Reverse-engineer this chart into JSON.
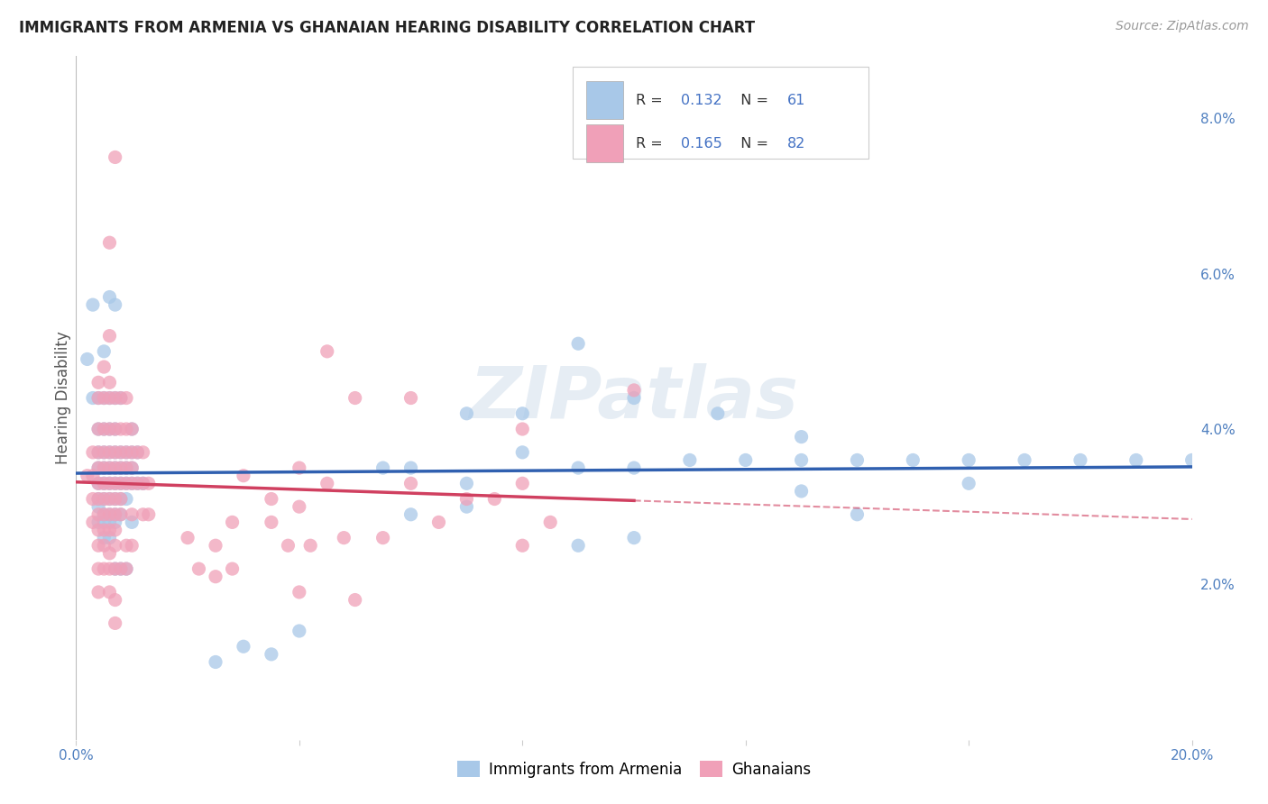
{
  "title": "IMMIGRANTS FROM ARMENIA VS GHANAIAN HEARING DISABILITY CORRELATION CHART",
  "source": "Source: ZipAtlas.com",
  "ylabel": "Hearing Disability",
  "xlim": [
    0.0,
    0.2
  ],
  "ylim": [
    0.0,
    0.088
  ],
  "series1_color": "#a8c8e8",
  "series2_color": "#f0a0b8",
  "series1_line_color": "#3060b0",
  "series2_line_color": "#d04060",
  "watermark": "ZIPatlas",
  "background_color": "#ffffff",
  "grid_color": "#d8d8d8",
  "blue_scatter": [
    [
      0.002,
      0.049
    ],
    [
      0.003,
      0.044
    ],
    [
      0.004,
      0.044
    ],
    [
      0.004,
      0.04
    ],
    [
      0.004,
      0.037
    ],
    [
      0.004,
      0.035
    ],
    [
      0.004,
      0.033
    ],
    [
      0.004,
      0.031
    ],
    [
      0.004,
      0.03
    ],
    [
      0.004,
      0.028
    ],
    [
      0.005,
      0.05
    ],
    [
      0.005,
      0.044
    ],
    [
      0.005,
      0.04
    ],
    [
      0.005,
      0.037
    ],
    [
      0.005,
      0.035
    ],
    [
      0.005,
      0.033
    ],
    [
      0.005,
      0.031
    ],
    [
      0.005,
      0.029
    ],
    [
      0.005,
      0.028
    ],
    [
      0.005,
      0.026
    ],
    [
      0.006,
      0.057
    ],
    [
      0.006,
      0.044
    ],
    [
      0.006,
      0.04
    ],
    [
      0.006,
      0.037
    ],
    [
      0.006,
      0.035
    ],
    [
      0.006,
      0.033
    ],
    [
      0.006,
      0.031
    ],
    [
      0.006,
      0.029
    ],
    [
      0.006,
      0.028
    ],
    [
      0.006,
      0.026
    ],
    [
      0.007,
      0.044
    ],
    [
      0.007,
      0.04
    ],
    [
      0.007,
      0.037
    ],
    [
      0.007,
      0.035
    ],
    [
      0.007,
      0.033
    ],
    [
      0.007,
      0.031
    ],
    [
      0.007,
      0.029
    ],
    [
      0.007,
      0.028
    ],
    [
      0.007,
      0.022
    ],
    [
      0.008,
      0.044
    ],
    [
      0.008,
      0.037
    ],
    [
      0.008,
      0.035
    ],
    [
      0.008,
      0.033
    ],
    [
      0.008,
      0.031
    ],
    [
      0.008,
      0.029
    ],
    [
      0.008,
      0.022
    ],
    [
      0.009,
      0.037
    ],
    [
      0.009,
      0.035
    ],
    [
      0.009,
      0.033
    ],
    [
      0.009,
      0.031
    ],
    [
      0.009,
      0.022
    ],
    [
      0.01,
      0.04
    ],
    [
      0.01,
      0.037
    ],
    [
      0.01,
      0.035
    ],
    [
      0.01,
      0.033
    ],
    [
      0.01,
      0.028
    ],
    [
      0.011,
      0.037
    ],
    [
      0.011,
      0.033
    ],
    [
      0.012,
      0.033
    ],
    [
      0.003,
      0.056
    ],
    [
      0.007,
      0.056
    ],
    [
      0.09,
      0.051
    ],
    [
      0.1,
      0.044
    ],
    [
      0.115,
      0.042
    ],
    [
      0.08,
      0.042
    ],
    [
      0.13,
      0.039
    ],
    [
      0.07,
      0.042
    ],
    [
      0.055,
      0.035
    ],
    [
      0.06,
      0.035
    ],
    [
      0.07,
      0.033
    ],
    [
      0.08,
      0.037
    ],
    [
      0.09,
      0.035
    ],
    [
      0.1,
      0.035
    ],
    [
      0.11,
      0.036
    ],
    [
      0.12,
      0.036
    ],
    [
      0.13,
      0.036
    ],
    [
      0.14,
      0.036
    ],
    [
      0.15,
      0.036
    ],
    [
      0.16,
      0.036
    ],
    [
      0.17,
      0.036
    ],
    [
      0.18,
      0.036
    ],
    [
      0.19,
      0.036
    ],
    [
      0.2,
      0.036
    ],
    [
      0.14,
      0.029
    ],
    [
      0.16,
      0.033
    ],
    [
      0.09,
      0.025
    ],
    [
      0.1,
      0.026
    ],
    [
      0.07,
      0.03
    ],
    [
      0.06,
      0.029
    ],
    [
      0.13,
      0.032
    ],
    [
      0.03,
      0.012
    ],
    [
      0.035,
      0.011
    ],
    [
      0.04,
      0.014
    ],
    [
      0.025,
      0.01
    ]
  ],
  "pink_scatter": [
    [
      0.002,
      0.034
    ],
    [
      0.003,
      0.037
    ],
    [
      0.003,
      0.034
    ],
    [
      0.003,
      0.031
    ],
    [
      0.003,
      0.028
    ],
    [
      0.004,
      0.046
    ],
    [
      0.004,
      0.044
    ],
    [
      0.004,
      0.04
    ],
    [
      0.004,
      0.037
    ],
    [
      0.004,
      0.035
    ],
    [
      0.004,
      0.033
    ],
    [
      0.004,
      0.031
    ],
    [
      0.004,
      0.029
    ],
    [
      0.004,
      0.027
    ],
    [
      0.004,
      0.025
    ],
    [
      0.004,
      0.022
    ],
    [
      0.004,
      0.019
    ],
    [
      0.005,
      0.048
    ],
    [
      0.005,
      0.044
    ],
    [
      0.005,
      0.04
    ],
    [
      0.005,
      0.037
    ],
    [
      0.005,
      0.035
    ],
    [
      0.005,
      0.033
    ],
    [
      0.005,
      0.031
    ],
    [
      0.005,
      0.029
    ],
    [
      0.005,
      0.027
    ],
    [
      0.005,
      0.025
    ],
    [
      0.005,
      0.022
    ],
    [
      0.006,
      0.064
    ],
    [
      0.006,
      0.052
    ],
    [
      0.006,
      0.046
    ],
    [
      0.006,
      0.044
    ],
    [
      0.006,
      0.04
    ],
    [
      0.006,
      0.037
    ],
    [
      0.006,
      0.035
    ],
    [
      0.006,
      0.033
    ],
    [
      0.006,
      0.031
    ],
    [
      0.006,
      0.029
    ],
    [
      0.006,
      0.027
    ],
    [
      0.006,
      0.024
    ],
    [
      0.006,
      0.022
    ],
    [
      0.006,
      0.019
    ],
    [
      0.007,
      0.075
    ],
    [
      0.007,
      0.044
    ],
    [
      0.007,
      0.04
    ],
    [
      0.007,
      0.037
    ],
    [
      0.007,
      0.035
    ],
    [
      0.007,
      0.033
    ],
    [
      0.007,
      0.031
    ],
    [
      0.007,
      0.029
    ],
    [
      0.007,
      0.027
    ],
    [
      0.007,
      0.025
    ],
    [
      0.007,
      0.022
    ],
    [
      0.007,
      0.018
    ],
    [
      0.007,
      0.015
    ],
    [
      0.008,
      0.044
    ],
    [
      0.008,
      0.04
    ],
    [
      0.008,
      0.037
    ],
    [
      0.008,
      0.035
    ],
    [
      0.008,
      0.033
    ],
    [
      0.008,
      0.031
    ],
    [
      0.008,
      0.029
    ],
    [
      0.008,
      0.022
    ],
    [
      0.009,
      0.044
    ],
    [
      0.009,
      0.04
    ],
    [
      0.009,
      0.037
    ],
    [
      0.009,
      0.035
    ],
    [
      0.009,
      0.033
    ],
    [
      0.009,
      0.025
    ],
    [
      0.009,
      0.022
    ],
    [
      0.01,
      0.04
    ],
    [
      0.01,
      0.037
    ],
    [
      0.01,
      0.035
    ],
    [
      0.01,
      0.033
    ],
    [
      0.01,
      0.029
    ],
    [
      0.01,
      0.025
    ],
    [
      0.011,
      0.037
    ],
    [
      0.011,
      0.033
    ],
    [
      0.012,
      0.037
    ],
    [
      0.012,
      0.033
    ],
    [
      0.012,
      0.029
    ],
    [
      0.013,
      0.033
    ],
    [
      0.013,
      0.029
    ],
    [
      0.03,
      0.034
    ],
    [
      0.035,
      0.031
    ],
    [
      0.04,
      0.035
    ],
    [
      0.045,
      0.05
    ],
    [
      0.05,
      0.044
    ],
    [
      0.06,
      0.044
    ],
    [
      0.08,
      0.04
    ],
    [
      0.1,
      0.045
    ],
    [
      0.04,
      0.019
    ],
    [
      0.05,
      0.018
    ],
    [
      0.06,
      0.033
    ],
    [
      0.08,
      0.033
    ],
    [
      0.038,
      0.025
    ],
    [
      0.042,
      0.025
    ],
    [
      0.048,
      0.026
    ],
    [
      0.035,
      0.028
    ],
    [
      0.04,
      0.03
    ],
    [
      0.045,
      0.033
    ],
    [
      0.055,
      0.026
    ],
    [
      0.065,
      0.028
    ],
    [
      0.07,
      0.031
    ],
    [
      0.075,
      0.031
    ],
    [
      0.08,
      0.025
    ],
    [
      0.085,
      0.028
    ],
    [
      0.02,
      0.026
    ],
    [
      0.022,
      0.022
    ],
    [
      0.025,
      0.025
    ],
    [
      0.025,
      0.021
    ],
    [
      0.028,
      0.022
    ],
    [
      0.028,
      0.028
    ]
  ],
  "legend_R1": "0.132",
  "legend_N1": "61",
  "legend_R2": "0.165",
  "legend_N2": "82",
  "label1": "Immigrants from Armenia",
  "label2": "Ghanaians"
}
